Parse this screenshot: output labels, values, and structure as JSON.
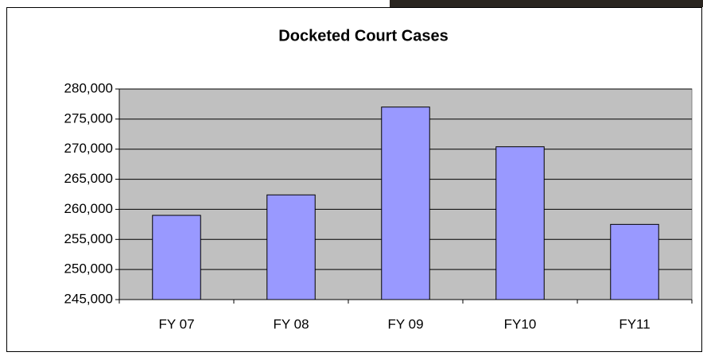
{
  "chart_data": {
    "type": "bar",
    "title": "Docketed Court Cases",
    "categories": [
      "FY 07",
      "FY 08",
      "FY 09",
      "FY10",
      "FY11"
    ],
    "values": [
      259000,
      262400,
      277000,
      270400,
      257500
    ],
    "color": "#9999ff",
    "ylim": [
      245000,
      280000
    ],
    "yticks": [
      {
        "value": 245000,
        "label": "245,000"
      },
      {
        "value": 250000,
        "label": "250,000"
      },
      {
        "value": 255000,
        "label": "255,000"
      },
      {
        "value": 260000,
        "label": "260,000"
      },
      {
        "value": 265000,
        "label": "265,000"
      },
      {
        "value": 270000,
        "label": "270,000"
      },
      {
        "value": 275000,
        "label": "275,000"
      },
      {
        "value": 280000,
        "label": "280,000"
      }
    ],
    "grid": true
  }
}
